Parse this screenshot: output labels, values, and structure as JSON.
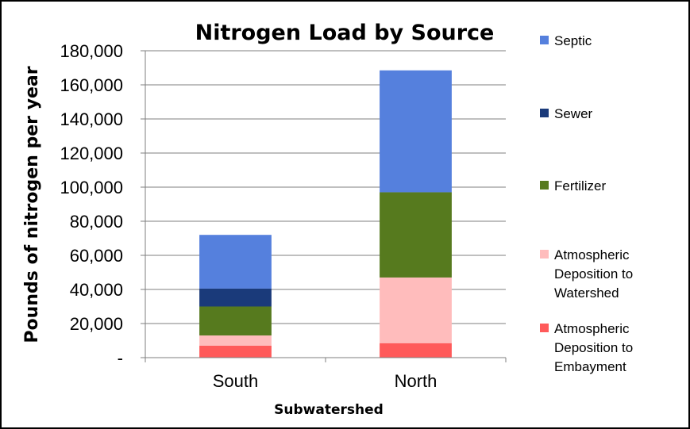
{
  "chart_data": {
    "type": "bar",
    "stacked": true,
    "title": "Nitrogen Load by Source",
    "xlabel": "Subwatershed",
    "ylabel": "Pounds of nitrogen per year",
    "categories": [
      "South",
      "North"
    ],
    "ylim": [
      0,
      180000
    ],
    "yticks": [
      0,
      20000,
      40000,
      60000,
      80000,
      100000,
      120000,
      140000,
      160000,
      180000
    ],
    "ytick_labels": [
      "-",
      "20,000",
      "40,000",
      "60,000",
      "80,000",
      "100,000",
      "120,000",
      "140,000",
      "160,000",
      "180,000"
    ],
    "grid": true,
    "legend_position": "right",
    "series": [
      {
        "name": "Atmospheric Deposition to Embayment",
        "color": "#ff5a5a",
        "values": [
          7000,
          8500
        ]
      },
      {
        "name": "Atmospheric Deposition to Watershed",
        "color": "#ffbcbc",
        "values": [
          6000,
          38500
        ]
      },
      {
        "name": "Fertilizer",
        "color": "#567a1e",
        "values": [
          17000,
          50000
        ]
      },
      {
        "name": "Sewer",
        "color": "#1a3a7a",
        "values": [
          10500,
          0
        ]
      },
      {
        "name": "Septic",
        "color": "#5580dd",
        "values": [
          31500,
          71500
        ]
      }
    ],
    "legend_order": [
      "Septic",
      "Sewer",
      "Fertilizer",
      "Atmospheric Deposition to Watershed",
      "Atmospheric Deposition to Embayment"
    ],
    "legend_labels": {
      "Septic": [
        "Septic"
      ],
      "Sewer": [
        "Sewer"
      ],
      "Fertilizer": [
        "Fertilizer"
      ],
      "Atmospheric Deposition to Watershed": [
        "Atmospheric",
        "Deposition to",
        "Watershed"
      ],
      "Atmospheric Deposition to Embayment": [
        "Atmospheric",
        "Deposition to",
        "Embayment"
      ]
    }
  }
}
